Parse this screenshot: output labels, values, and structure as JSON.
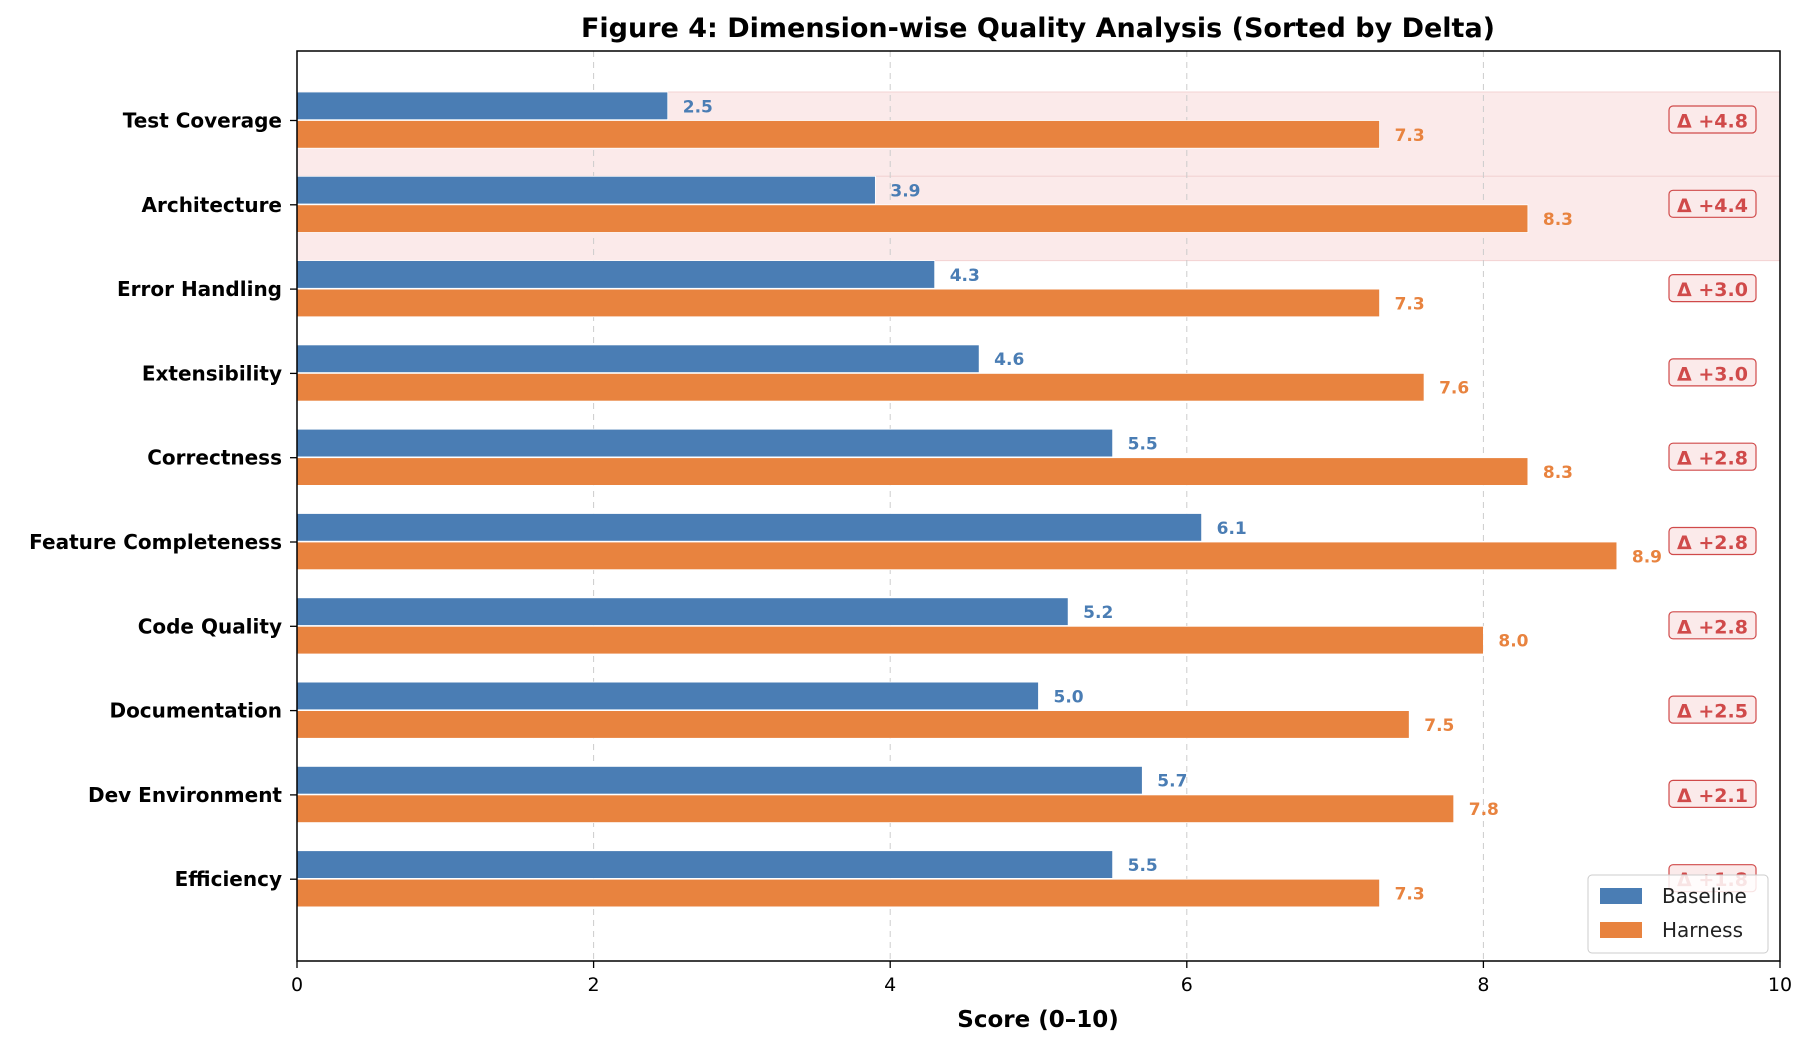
{
  "chart_data": {
    "type": "bar",
    "orientation": "horizontal",
    "title": "Figure 4: Dimension-wise Quality Analysis (Sorted by Delta)",
    "xlabel": "Score (0–10)",
    "ylabel": "",
    "xlim": [
      0,
      10
    ],
    "xticks": [
      "0",
      "2",
      "4",
      "6",
      "8",
      "10"
    ],
    "grid": "vertical dashed",
    "legend_position": "bottom-right",
    "categories": [
      "Test Coverage",
      "Architecture",
      "Error Handling",
      "Extensibility",
      "Correctness",
      "Feature Completeness",
      "Code Quality",
      "Documentation",
      "Dev Environment",
      "Efficiency"
    ],
    "series": [
      {
        "name": "Baseline",
        "color": "#4a7db4",
        "values": [
          2.5,
          3.9,
          4.3,
          4.6,
          5.5,
          6.1,
          5.2,
          5.0,
          5.7,
          5.5
        ],
        "labels": [
          "2.5",
          "3.9",
          "4.3",
          "4.6",
          "5.5",
          "6.1",
          "5.2",
          "5.0",
          "5.7",
          "5.5"
        ]
      },
      {
        "name": "Harness",
        "color": "#e8833f",
        "values": [
          7.3,
          8.3,
          7.3,
          7.6,
          8.3,
          8.9,
          8.0,
          7.5,
          7.8,
          7.3
        ],
        "labels": [
          "7.3",
          "8.3",
          "7.3",
          "7.6",
          "8.3",
          "8.9",
          "8.0",
          "7.5",
          "7.8",
          "7.3"
        ]
      }
    ],
    "deltas": [
      "Δ +4.8",
      "Δ +4.4",
      "Δ +3.0",
      "Δ +3.0",
      "Δ +2.8",
      "Δ +2.8",
      "Δ +2.8",
      "Δ +2.5",
      "Δ +2.1",
      "Δ +1.8"
    ],
    "highlighted_categories": [
      "Test Coverage",
      "Architecture"
    ],
    "highlight_color": "#fbeaea",
    "delta_color": "#d04a4a"
  }
}
